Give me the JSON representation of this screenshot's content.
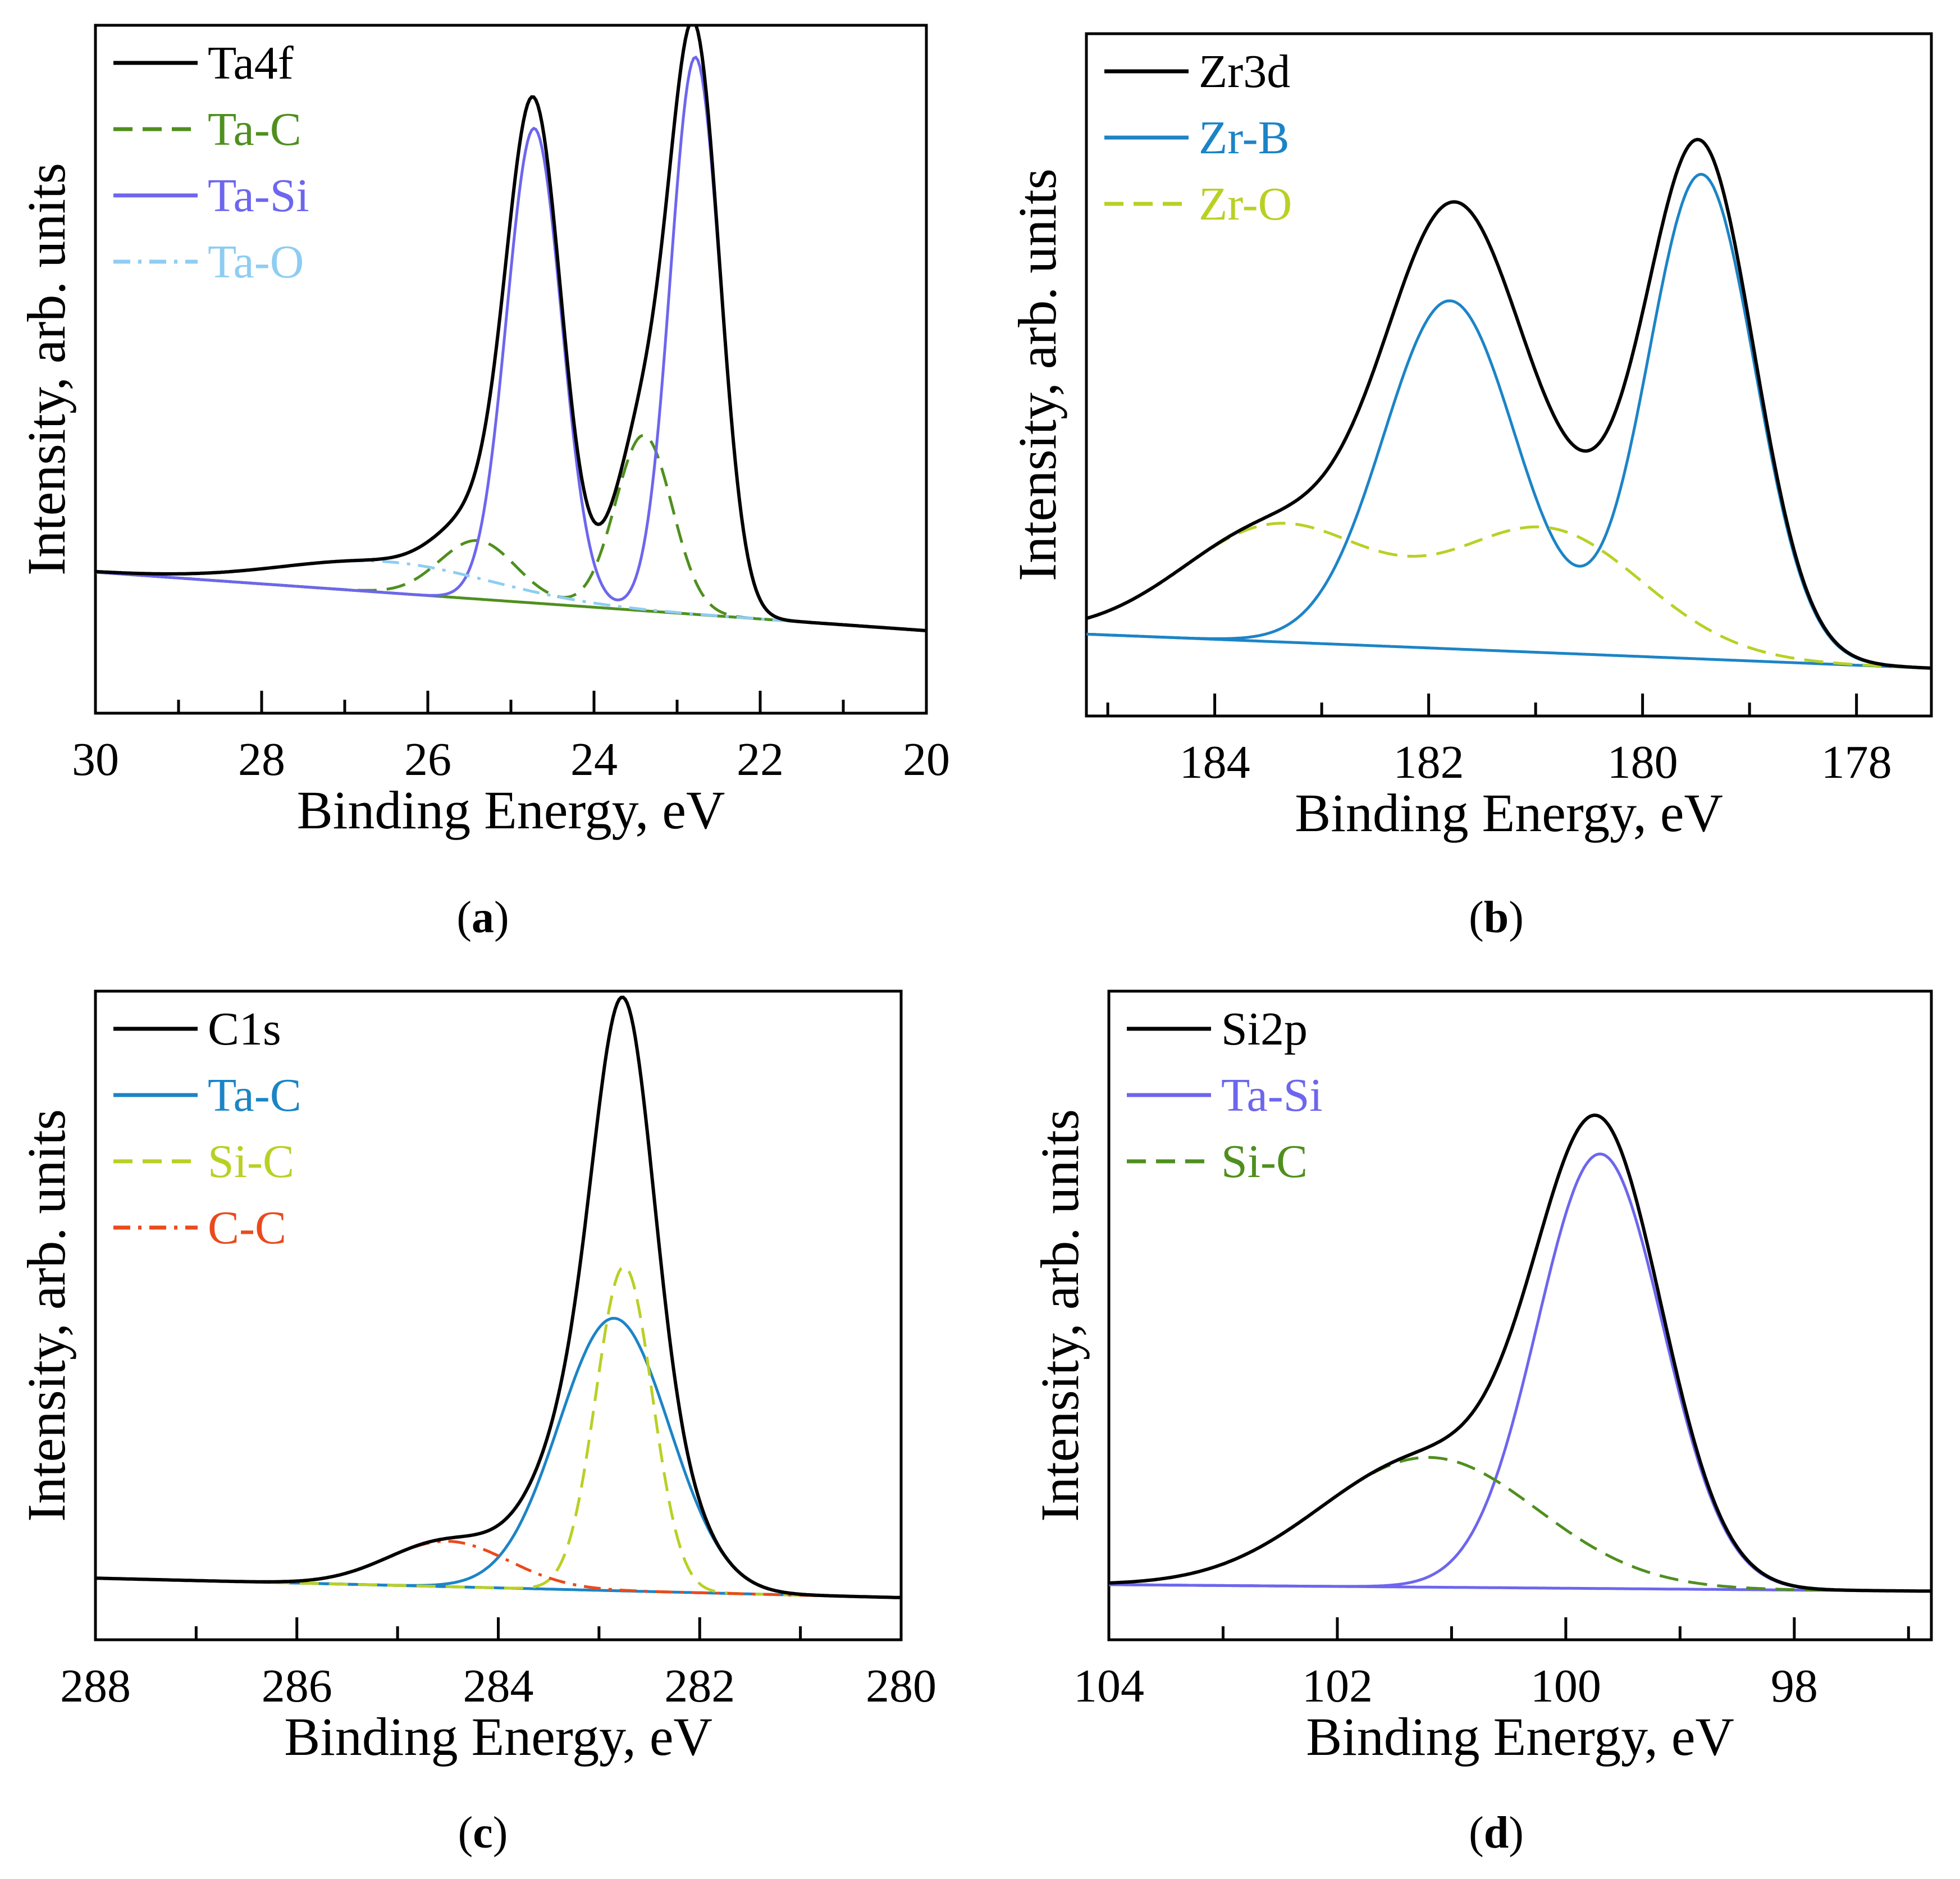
{
  "chart_data": [
    {
      "panel": "a",
      "type": "line",
      "caption_letter": "a",
      "xlabel": "Binding Energy, eV",
      "ylabel": "Intensity, arb. units",
      "xlim": [
        30,
        20
      ],
      "xticks": [
        30,
        28,
        26,
        24,
        22,
        20
      ],
      "ylim": [
        0,
        1
      ],
      "background": {
        "start": 0.205,
        "end": 0.12
      },
      "series": [
        {
          "name": "Ta4f",
          "role": "envelope",
          "color": "#000000",
          "dash": "solid"
        },
        {
          "name": "Ta-C",
          "color": "#4f8f1e",
          "dash": "dashed",
          "peaks": [
            {
              "center": 25.4,
              "height": 0.085,
              "sigma": 0.46
            },
            {
              "center": 23.4,
              "height": 0.255,
              "sigma": 0.34
            }
          ]
        },
        {
          "name": "Ta-Si",
          "color": "#6d66ee",
          "dash": "solid",
          "peaks": [
            {
              "center": 24.72,
              "height": 0.69,
              "sigma": 0.33
            },
            {
              "center": 22.78,
              "height": 0.81,
              "sigma": 0.3
            }
          ]
        },
        {
          "name": "Ta-O",
          "color": "#8ecdf2",
          "dash": "dashdot",
          "peaks": [
            {
              "center": 26.5,
              "height": 0.045,
              "sigma": 1.25
            }
          ]
        }
      ]
    },
    {
      "panel": "b",
      "type": "line",
      "caption_letter": "b",
      "xlabel": "Binding Energy, eV",
      "ylabel": "Intensity, arb. units",
      "xlim": [
        185.2,
        177.3
      ],
      "xticks": [
        184,
        182,
        180,
        178
      ],
      "ylim": [
        0,
        1
      ],
      "background": {
        "start": 0.12,
        "end": 0.07
      },
      "series": [
        {
          "name": "Zr3d",
          "role": "envelope",
          "color": "#000000",
          "dash": "solid"
        },
        {
          "name": "Zr-B",
          "color": "#1c84c6",
          "dash": "solid",
          "peaks": [
            {
              "center": 181.8,
              "height": 0.51,
              "sigma": 0.62
            },
            {
              "center": 179.45,
              "height": 0.71,
              "sigma": 0.5
            }
          ]
        },
        {
          "name": "Zr-O",
          "color": "#b9d024",
          "dash": "dashed",
          "peaks": [
            {
              "center": 183.4,
              "height": 0.17,
              "sigma": 0.9
            },
            {
              "center": 180.9,
              "height": 0.18,
              "sigma": 0.9
            }
          ]
        }
      ]
    },
    {
      "panel": "c",
      "type": "line",
      "caption_letter": "c",
      "xlabel": "Binding Energy, eV",
      "ylabel": "Intensity, arb. units",
      "xlim": [
        288,
        280
      ],
      "xticks": [
        288,
        286,
        284,
        282,
        280
      ],
      "ylim": [
        0,
        1
      ],
      "background": {
        "start": 0.095,
        "end": 0.065
      },
      "series": [
        {
          "name": "C1s",
          "role": "envelope",
          "color": "#000000",
          "dash": "solid"
        },
        {
          "name": "Ta-C",
          "color": "#1c84c6",
          "dash": "solid",
          "peaks": [
            {
              "center": 282.85,
              "height": 0.42,
              "sigma": 0.55
            }
          ]
        },
        {
          "name": "Si-C",
          "color": "#b9d024",
          "dash": "dashed",
          "peaks": [
            {
              "center": 282.75,
              "height": 0.5,
              "sigma": 0.28
            }
          ]
        },
        {
          "name": "C-C",
          "color": "#ea4a1c",
          "dash": "dashdot",
          "peaks": [
            {
              "center": 284.5,
              "height": 0.07,
              "sigma": 0.6
            }
          ]
        }
      ]
    },
    {
      "panel": "d",
      "type": "line",
      "caption_letter": "d",
      "xlabel": "Binding Energy, eV",
      "ylabel": "Intensity, arb. units",
      "xlim": [
        104,
        96.8
      ],
      "xticks": [
        104,
        102,
        100,
        98
      ],
      "ylim": [
        0,
        1
      ],
      "background": {
        "start": 0.085,
        "end": 0.075
      },
      "series": [
        {
          "name": "Si2p",
          "role": "envelope",
          "color": "#000000",
          "dash": "solid"
        },
        {
          "name": "Ta-Si",
          "color": "#6d66ee",
          "dash": "solid",
          "peaks": [
            {
              "center": 99.7,
              "height": 0.67,
              "sigma": 0.55
            }
          ]
        },
        {
          "name": "Si-C",
          "color": "#4f8f1e",
          "dash": "dashed",
          "peaks": [
            {
              "center": 101.2,
              "height": 0.2,
              "sigma": 0.95
            }
          ]
        }
      ]
    }
  ]
}
